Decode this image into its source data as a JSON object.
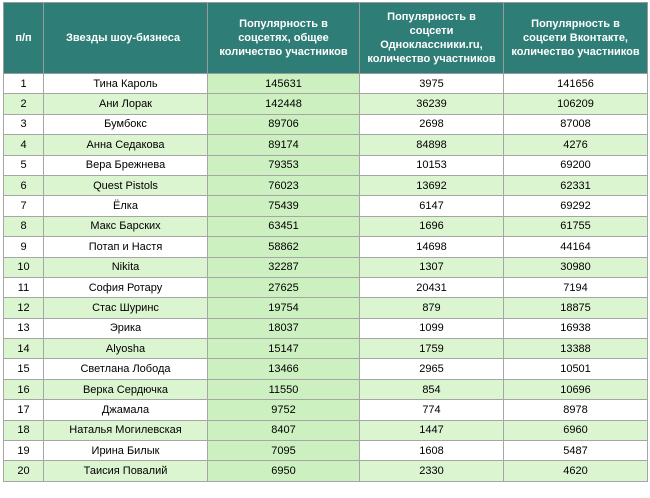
{
  "headers": {
    "num": "п/п",
    "name": "Звезды шоу-бизнеса",
    "total": "Популярность в соцсетях, общее количество участников",
    "ok": "Популярность в соцсети Одноклассники.ru, количество участников",
    "vk": "Популярность в соцсети Вконтакте, количество участников"
  },
  "rows": [
    {
      "num": "1",
      "name": "Тина Кароль",
      "total": "145631",
      "ok": "3975",
      "vk": "141656"
    },
    {
      "num": "2",
      "name": "Ани Лорак",
      "total": "142448",
      "ok": "36239",
      "vk": "106209"
    },
    {
      "num": "3",
      "name": "Бумбокс",
      "total": "89706",
      "ok": "2698",
      "vk": "87008"
    },
    {
      "num": "4",
      "name": "Анна Седакова",
      "total": "89174",
      "ok": "84898",
      "vk": "4276"
    },
    {
      "num": "5",
      "name": "Вера Брежнева",
      "total": "79353",
      "ok": "10153",
      "vk": "69200"
    },
    {
      "num": "6",
      "name": "Quest Pistols",
      "total": "76023",
      "ok": "13692",
      "vk": "62331"
    },
    {
      "num": "7",
      "name": "Ёлка",
      "total": "75439",
      "ok": "6147",
      "vk": "69292"
    },
    {
      "num": "8",
      "name": "Макс Барских",
      "total": "63451",
      "ok": "1696",
      "vk": "61755"
    },
    {
      "num": "9",
      "name": "Потап и Настя",
      "total": "58862",
      "ok": "14698",
      "vk": "44164"
    },
    {
      "num": "10",
      "name": "Nikita",
      "total": "32287",
      "ok": "1307",
      "vk": "30980"
    },
    {
      "num": "11",
      "name": "София Ротару",
      "total": "27625",
      "ok": "20431",
      "vk": "7194"
    },
    {
      "num": "12",
      "name": "Стас Шуринс",
      "total": "19754",
      "ok": "879",
      "vk": "18875"
    },
    {
      "num": "13",
      "name": "Эрика",
      "total": "18037",
      "ok": "1099",
      "vk": "16938"
    },
    {
      "num": "14",
      "name": "Alyosha",
      "total": "15147",
      "ok": "1759",
      "vk": "13388"
    },
    {
      "num": "15",
      "name": "Светлана Лобода",
      "total": "13466",
      "ok": "2965",
      "vk": "10501"
    },
    {
      "num": "16",
      "name": "Верка Сердючка",
      "total": "11550",
      "ok": "854",
      "vk": "10696"
    },
    {
      "num": "17",
      "name": "Джамала",
      "total": "9752",
      "ok": "774",
      "vk": "8978"
    },
    {
      "num": "18",
      "name": "Наталья Могилевская",
      "total": "8407",
      "ok": "1447",
      "vk": "6960"
    },
    {
      "num": "19",
      "name": "Ирина Билык",
      "total": "7095",
      "ok": "1608",
      "vk": "5487"
    },
    {
      "num": "20",
      "name": "Таисия Повалий",
      "total": "6950",
      "ok": "2330",
      "vk": "4620"
    }
  ],
  "colors": {
    "header_bg": "#2e7d76",
    "row_alt_bg": "#dcf5d1",
    "total_col_bg": "#cdf0c0"
  }
}
